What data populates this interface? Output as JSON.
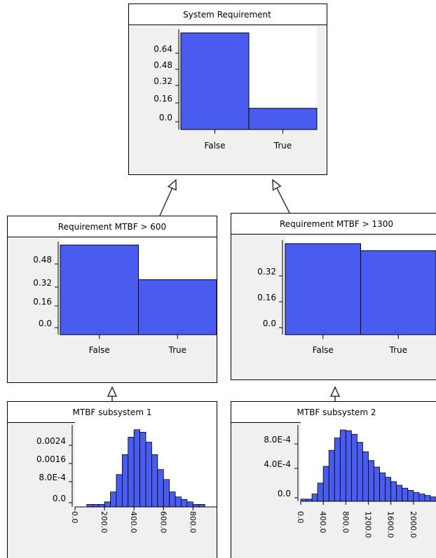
{
  "colors": {
    "bar_fill": "#4a5cf0",
    "bar_stroke": "#000000",
    "panel_bg": "#f0f0f0",
    "title_bg": "#ffffff",
    "border": "#000000"
  },
  "nodes": [
    {
      "id": "system-requirement",
      "title": "System Requirement",
      "chart_type": "bar",
      "categories": [
        "False",
        "True"
      ],
      "values": [
        0.82,
        0.18
      ],
      "ytick_labels": [
        "0.64",
        "0.48",
        "0.32",
        "0.16",
        "0.0"
      ],
      "ytick_values": [
        0.64,
        0.48,
        0.32,
        0.16,
        0.0
      ],
      "ylim": [
        0,
        0.82
      ]
    },
    {
      "id": "requirement-mtbf-600",
      "title": "Requirement MTBF > 600",
      "chart_type": "bar",
      "categories": [
        "False",
        "True"
      ],
      "values": [
        0.62,
        0.38
      ],
      "ytick_labels": [
        "0.48",
        "0.32",
        "0.16",
        "0.0"
      ],
      "ytick_values": [
        0.48,
        0.32,
        0.16,
        0.0
      ],
      "ylim": [
        0,
        0.62
      ]
    },
    {
      "id": "requirement-mtbf-1300",
      "title": "Requirement MTBF > 1300",
      "chart_type": "bar",
      "categories": [
        "False",
        "True"
      ],
      "values": [
        0.52,
        0.48
      ],
      "ytick_labels": [
        "0.32",
        "0.16",
        "0.0"
      ],
      "ytick_values": [
        0.32,
        0.16,
        0.0
      ],
      "ylim": [
        0,
        0.52
      ]
    },
    {
      "id": "mtbf-subsystem-1",
      "title": "MTBF subsystem 1",
      "chart_type": "histogram",
      "bin_start": 0,
      "bin_width": 40,
      "values": [
        0.0,
        0.0,
        0.0001,
        0.0001,
        0.0001,
        0.0002,
        0.0006,
        0.0013,
        0.0021,
        0.0028,
        0.0031,
        0.003,
        0.0026,
        0.0021,
        0.0015,
        0.0011,
        0.0006,
        0.0004,
        0.0003,
        0.0002,
        0.0001,
        0.0001,
        0.0,
        0.0
      ],
      "ytick_labels": [
        "0.0024",
        "0.0016",
        "8.0E-4",
        "0.0"
      ],
      "ytick_values": [
        0.0024,
        0.0016,
        0.0008,
        0.0
      ],
      "ylim": [
        0,
        0.00315
      ],
      "xtick_labels": [
        "0.0",
        "200.0",
        "400.0",
        "600.0",
        "800.0"
      ],
      "xtick_values": [
        0,
        200,
        400,
        600,
        800
      ],
      "xlim": [
        0,
        960
      ]
    },
    {
      "id": "mtbf-subsystem-2",
      "title": "MTBF subsystem 2",
      "chart_type": "histogram",
      "bin_start": 0,
      "bin_width": 100,
      "values": [
        3e-05,
        3e-05,
        0.0001,
        0.00025,
        0.00048,
        0.0007,
        0.00087,
        0.00098,
        0.00097,
        0.00092,
        0.00081,
        0.00068,
        0.00056,
        0.00047,
        0.00039,
        0.00033,
        0.00027,
        0.00022,
        0.00018,
        0.00015,
        0.00012,
        0.0001,
        8e-05,
        6e-05
      ],
      "ytick_labels": [
        "8.0E-4",
        "4.0E-4",
        "0.0"
      ],
      "ytick_values": [
        0.0008,
        0.0004,
        0.0
      ],
      "ylim": [
        0,
        0.001
      ],
      "xtick_labels": [
        "0.0",
        "400.0",
        "800.0",
        "1200.0",
        "1600.0",
        "2000.0"
      ],
      "xtick_values": [
        0,
        400,
        800,
        1200,
        1600,
        2000
      ],
      "xlim": [
        0,
        2400
      ]
    }
  ],
  "edges": [
    {
      "from": "requirement-mtbf-600",
      "to": "system-requirement"
    },
    {
      "from": "requirement-mtbf-1300",
      "to": "system-requirement"
    },
    {
      "from": "mtbf-subsystem-1",
      "to": "requirement-mtbf-600"
    },
    {
      "from": "mtbf-subsystem-2",
      "to": "requirement-mtbf-1300"
    }
  ]
}
